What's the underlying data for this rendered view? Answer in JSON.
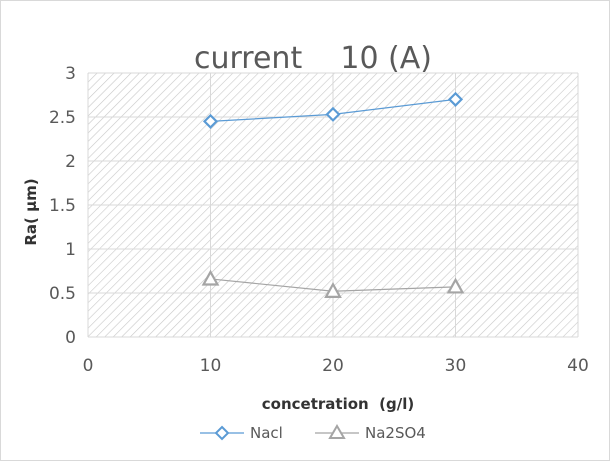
{
  "chart_data": {
    "type": "line",
    "title": "current    10 (A)",
    "xlabel": "concetration  (g/l)",
    "ylabel": "Ra( µm)",
    "xlim": [
      0,
      40
    ],
    "ylim": [
      0,
      3
    ],
    "xticks": [
      "0",
      "10",
      "20",
      "30",
      "40"
    ],
    "yticks": [
      "0",
      "0.5",
      "1",
      "1.5",
      "2",
      "2.5",
      "3"
    ],
    "x": [
      10,
      20,
      30
    ],
    "series": [
      {
        "name": "Nacl",
        "values": [
          2.45,
          2.53,
          2.7
        ],
        "color": "#5b9bd5",
        "marker": "diamond"
      },
      {
        "name": "Na2SO4",
        "values": [
          0.66,
          0.52,
          0.57
        ],
        "color": "#a5a5a5",
        "marker": "triangle"
      }
    ],
    "grid": true,
    "legend": "bottom",
    "plot_background": "diagonal-hatch"
  }
}
